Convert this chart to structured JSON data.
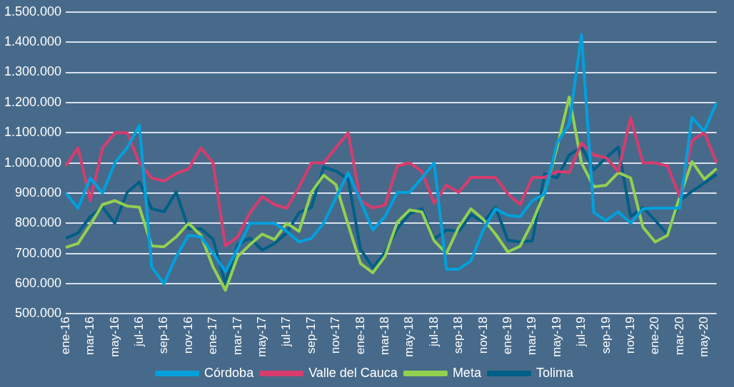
{
  "chart_data": {
    "type": "line",
    "categories": [
      "ene-16",
      null,
      "mar-16",
      null,
      "may-16",
      null,
      "jul-16",
      null,
      "sep-16",
      null,
      "nov-16",
      null,
      "ene-17",
      null,
      "mar-17",
      null,
      "may-17",
      null,
      "jul-17",
      null,
      "sep-17",
      null,
      "nov-17",
      null,
      "ene-18",
      null,
      "mar-18",
      null,
      "may-18",
      null,
      "jul-18",
      null,
      "sep-18",
      null,
      "nov-18",
      null,
      "ene-19",
      null,
      "mar-19",
      null,
      "may-19",
      null,
      "jul-19",
      null,
      "sep-19",
      null,
      "nov-19",
      null,
      "ene-20",
      null,
      "mar-20",
      null,
      "may-20",
      null
    ],
    "series": [
      {
        "name": "Córdoba",
        "color": "#00a0dc",
        "values": [
          900000,
          850000,
          950000,
          900000,
          1000000,
          1050000,
          1125000,
          655000,
          600000,
          690000,
          760000,
          755000,
          700000,
          640000,
          715000,
          800000,
          800000,
          800000,
          773000,
          738000,
          750000,
          800000,
          884000,
          968000,
          875000,
          778000,
          822000,
          902000,
          902000,
          950000,
          1000000,
          648000,
          648000,
          676000,
          778000,
          848000,
          826000,
          822000,
          875000,
          897000,
          1066000,
          1128000,
          1425000,
          835000,
          809000,
          838000,
          800000,
          848000,
          850000,
          850000,
          850000,
          1150000,
          1105000,
          1200000
        ]
      },
      {
        "name": "Valle del Cauca",
        "color": "#d63c6e",
        "values": [
          990000,
          1050000,
          875000,
          1050000,
          1100000,
          1100000,
          1000000,
          950000,
          940000,
          965000,
          980000,
          1050000,
          1000000,
          725000,
          755000,
          835000,
          888000,
          862000,
          850000,
          920000,
          1000000,
          1000000,
          1050000,
          1100000,
          875000,
          851000,
          860000,
          990000,
          1000000,
          972000,
          866000,
          926000,
          902000,
          952000,
          952000,
          952000,
          897000,
          862000,
          952000,
          952000,
          972000,
          968000,
          1066000,
          1026000,
          1017000,
          972000,
          1150000,
          1000000,
          1000000,
          990000,
          888000,
          1074000,
          1101000,
          1000000
        ]
      },
      {
        "name": "Meta",
        "color": "#92d050",
        "values": [
          720000,
          733000,
          795000,
          862000,
          875000,
          857000,
          853000,
          725000,
          722000,
          755000,
          800000,
          760000,
          655000,
          578000,
          690000,
          729000,
          764000,
          746000,
          800000,
          773000,
          902000,
          959000,
          928000,
          795000,
          667000,
          636000,
          690000,
          804000,
          844000,
          838000,
          742000,
          700000,
          787000,
          848000,
          813000,
          764000,
          705000,
          724000,
          804000,
          902000,
          1050000,
          1218000,
          1000000,
          921000,
          926000,
          968000,
          950000,
          787000,
          738000,
          760000,
          888000,
          1004000,
          946000,
          981000
        ]
      },
      {
        "name": "Tolima",
        "color": "#005f86",
        "values": [
          750000,
          768000,
          822000,
          853000,
          800000,
          902000,
          937000,
          848000,
          838000,
          903000,
          782000,
          782000,
          747000,
          600000,
          729000,
          751000,
          711000,
          733000,
          768000,
          835000,
          852000,
          986000,
          973000,
          946000,
          715000,
          653000,
          704000,
          782000,
          831000,
          848000,
          747000,
          778000,
          773000,
          828000,
          804000,
          853000,
          744000,
          738000,
          742000,
          964000,
          950000,
          1026000,
          1052000,
          977000,
          1017000,
          1052000,
          822000,
          853000,
          809000,
          764000,
          875000,
          906000,
          933000,
          962000
        ]
      }
    ],
    "ylim": [
      500000,
      1500000
    ],
    "yticks": [
      {
        "value": 500000,
        "label": "500.000"
      },
      {
        "value": 600000,
        "label": "600.000"
      },
      {
        "value": 700000,
        "label": "700.000"
      },
      {
        "value": 800000,
        "label": "800.000"
      },
      {
        "value": 900000,
        "label": "900.000"
      },
      {
        "value": 1000000,
        "label": "1.000.000"
      },
      {
        "value": 1100000,
        "label": "1.100.000"
      },
      {
        "value": 1200000,
        "label": "1.200.000"
      },
      {
        "value": 1300000,
        "label": "1.300.000"
      },
      {
        "value": 1400000,
        "label": "1.400.000"
      },
      {
        "value": 1500000,
        "label": "1.500.000"
      }
    ],
    "grid": "y",
    "legend": "bottom",
    "marker": "none",
    "line_style": "solid"
  }
}
